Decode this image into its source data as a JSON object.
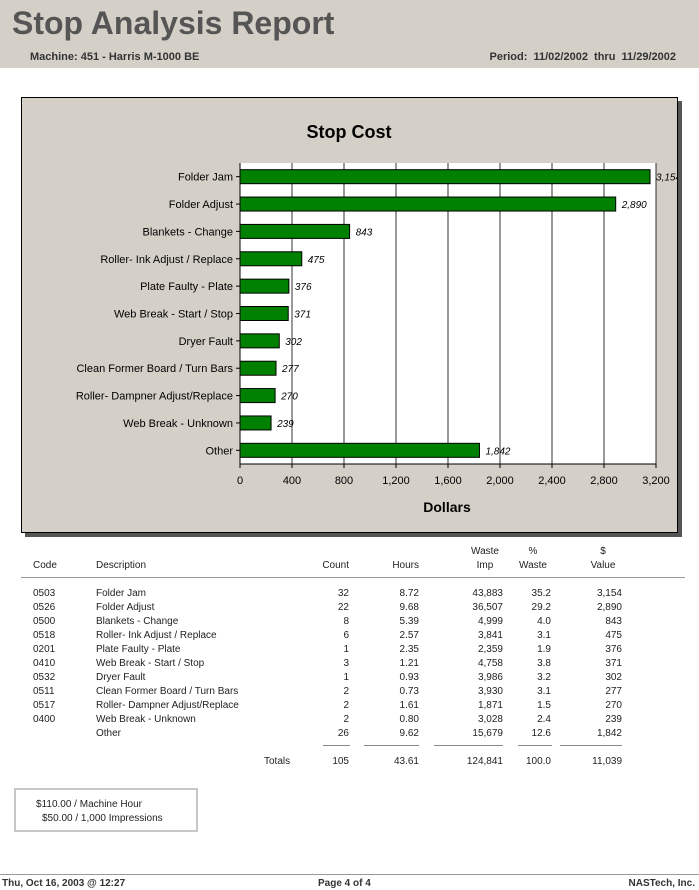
{
  "report": {
    "title": "Stop Analysis Report",
    "machine": "Machine: 451 - Harris M-1000 BE",
    "period": "Period:  11/02/2002  thru  11/29/2002"
  },
  "chart_data": {
    "type": "bar",
    "orientation": "horizontal",
    "title": "Stop Cost",
    "xlabel": "Dollars",
    "ylabel": "",
    "xlim": [
      0,
      3200
    ],
    "ticks": [
      "0",
      "400",
      "800",
      "1,200",
      "1,600",
      "2,000",
      "2,400",
      "2,800",
      "3,200"
    ],
    "tick_values": [
      0,
      400,
      800,
      1200,
      1600,
      2000,
      2400,
      2800,
      3200
    ],
    "grid": true,
    "bar_color": "#008000",
    "categories": [
      "Folder Jam",
      "Folder Adjust",
      "Blankets - Change",
      "Roller- Ink Adjust / Replace",
      "Plate Faulty - Plate",
      "Web Break - Start / Stop",
      "Dryer Fault",
      "Clean Former Board / Turn Bars",
      "Roller- Dampner Adjust/Replace",
      "Web Break - Unknown",
      "Other"
    ],
    "values": [
      3154,
      2890,
      843,
      475,
      376,
      371,
      302,
      277,
      270,
      239,
      1842
    ],
    "value_labels": [
      "3,154",
      "2,890",
      "843",
      "475",
      "376",
      "371",
      "302",
      "277",
      "270",
      "239",
      "1,842"
    ]
  },
  "table": {
    "headers": {
      "code": "Code",
      "description": "Description",
      "count": "Count",
      "hours": "Hours",
      "waste_imp_1": "Waste",
      "waste_imp_2": "Imp",
      "pct_waste_1": "%",
      "pct_waste_2": "Waste",
      "value_1": "$",
      "value_2": "Value"
    },
    "rows": [
      {
        "code": "0503",
        "description": "Folder Jam",
        "count": "32",
        "hours": "8.72",
        "waste_imp": "43,883",
        "pct_waste": "35.2",
        "value": "3,154"
      },
      {
        "code": "0526",
        "description": "Folder Adjust",
        "count": "22",
        "hours": "9.68",
        "waste_imp": "36,507",
        "pct_waste": "29.2",
        "value": "2,890"
      },
      {
        "code": "0500",
        "description": "Blankets - Change",
        "count": "8",
        "hours": "5.39",
        "waste_imp": "4,999",
        "pct_waste": "4.0",
        "value": "843"
      },
      {
        "code": "0518",
        "description": "Roller- Ink Adjust / Replace",
        "count": "6",
        "hours": "2.57",
        "waste_imp": "3,841",
        "pct_waste": "3.1",
        "value": "475"
      },
      {
        "code": "0201",
        "description": "Plate Faulty - Plate",
        "count": "1",
        "hours": "2.35",
        "waste_imp": "2,359",
        "pct_waste": "1.9",
        "value": "376"
      },
      {
        "code": "0410",
        "description": "Web Break - Start / Stop",
        "count": "3",
        "hours": "1.21",
        "waste_imp": "4,758",
        "pct_waste": "3.8",
        "value": "371"
      },
      {
        "code": "0532",
        "description": "Dryer Fault",
        "count": "1",
        "hours": "0.93",
        "waste_imp": "3,986",
        "pct_waste": "3.2",
        "value": "302"
      },
      {
        "code": "0511",
        "description": "Clean Former Board / Turn Bars",
        "count": "2",
        "hours": "0.73",
        "waste_imp": "3,930",
        "pct_waste": "3.1",
        "value": "277"
      },
      {
        "code": "0517",
        "description": "Roller- Dampner Adjust/Replace",
        "count": "2",
        "hours": "1.61",
        "waste_imp": "1,871",
        "pct_waste": "1.5",
        "value": "270"
      },
      {
        "code": "0400",
        "description": "Web Break - Unknown",
        "count": "2",
        "hours": "0.80",
        "waste_imp": "3,028",
        "pct_waste": "2.4",
        "value": "239"
      },
      {
        "code": "",
        "description": "Other",
        "count": "26",
        "hours": "9.62",
        "waste_imp": "15,679",
        "pct_waste": "12.6",
        "value": "1,842"
      }
    ],
    "totals": {
      "label": "Totals",
      "count": "105",
      "hours": "43.61",
      "waste_imp": "124,841",
      "pct_waste": "100.0",
      "value": "11,039"
    }
  },
  "rates": {
    "machine_hour": "$110.00 / Machine Hour",
    "impressions": "$50.00 / 1,000 Impressions"
  },
  "footer": {
    "timestamp": "Thu, Oct 16, 2003 @ 12:27",
    "page": "Page 4 of 4",
    "company": "NASTech, Inc."
  }
}
